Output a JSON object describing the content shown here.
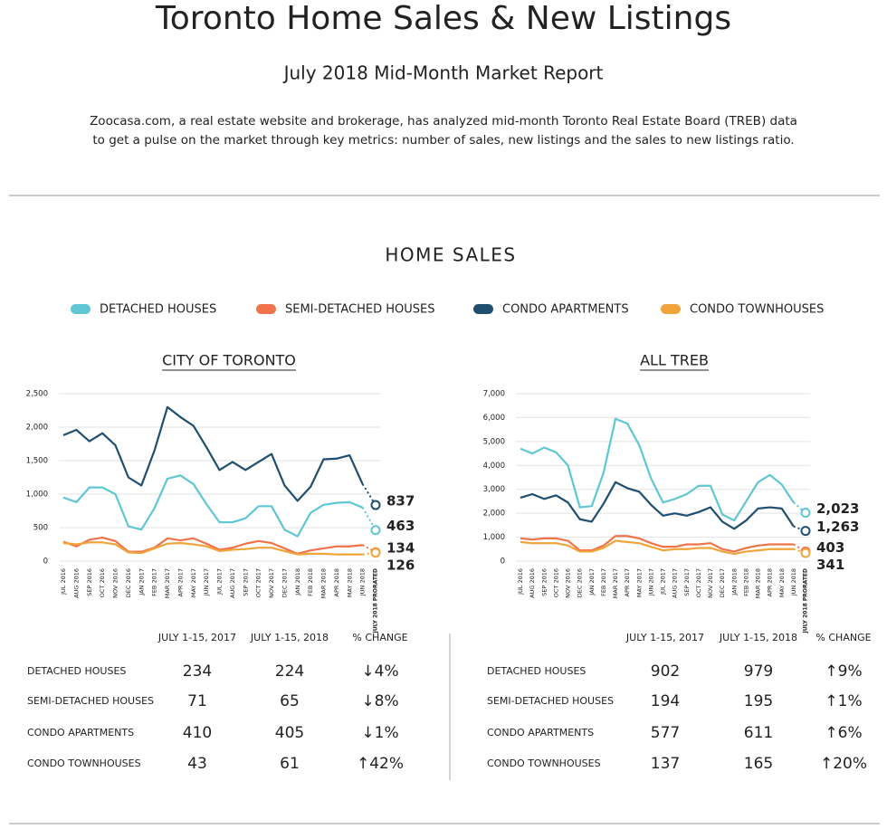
{
  "header": {
    "title": "Toronto Home Sales & New Listings",
    "subtitle": "July 2018 Mid-Month Market Report",
    "description": [
      "Zoocasa.com, a real estate website and brokerage, has analyzed mid-month Toronto Real Estate Board (TREB) data",
      "to get a pulse on the market through key metrics: number of sales, new listings and the sales to new listings ratio."
    ]
  },
  "section_title": "HOME SALES",
  "legend": [
    {
      "name": "DETACHED HOUSES",
      "color": "#5fc6d3"
    },
    {
      "name": "SEMI-DETACHED HOUSES",
      "color": "#f0734a"
    },
    {
      "name": "CONDO APARTMENTS",
      "color": "#1f4e6e"
    },
    {
      "name": "CONDO TOWNHOUSES",
      "color": "#f0a43a"
    }
  ],
  "chart_data": [
    {
      "type": "line",
      "title": "CITY OF TORONTO",
      "categories": [
        "JUL 2016",
        "AUG 2016",
        "SEP 2016",
        "OCT 2016",
        "NOV 2016",
        "DEC 2016",
        "JAN 2017",
        "FEB 2017",
        "MAR 2017",
        "APR 2017",
        "MAY 2017",
        "JUN 2017",
        "JUL 2017",
        "AUG 2017",
        "SEP 2017",
        "OCT 2017",
        "NOV 2017",
        "DEC 2017",
        "JAN 2018",
        "FEB 2018",
        "MAR 2018",
        "APR 2018",
        "MAY 2018",
        "JUN 2018",
        "JULY 2018 PRORATED"
      ],
      "ylim": [
        0,
        2500
      ],
      "yticks": [
        0,
        500,
        {
          "value": 1000,
          "label": "1,000"
        },
        {
          "value": 1500,
          "label": "1,500"
        },
        {
          "value": 2000,
          "label": "2,000"
        },
        {
          "value": 2500,
          "label": "2,500"
        }
      ],
      "grid": true,
      "series": [
        {
          "values": [
            950,
            880,
            1100,
            1100,
            1000,
            520,
            470,
            790,
            1230,
            1280,
            1150,
            850,
            580,
            580,
            640,
            820,
            820,
            470,
            370,
            720,
            840,
            870,
            880,
            800,
            463
          ],
          "value_labels": [
            null,
            null,
            null,
            null,
            null,
            null,
            null,
            null,
            null,
            null,
            null,
            null,
            null,
            null,
            null,
            null,
            null,
            null,
            null,
            null,
            null,
            null,
            null,
            null,
            "463"
          ]
        },
        {
          "values": [
            290,
            220,
            320,
            350,
            300,
            140,
            140,
            200,
            340,
            310,
            340,
            260,
            170,
            200,
            260,
            300,
            270,
            190,
            110,
            160,
            190,
            220,
            220,
            240,
            134
          ],
          "value_labels": [
            null,
            null,
            null,
            null,
            null,
            null,
            null,
            null,
            null,
            null,
            null,
            null,
            null,
            null,
            null,
            null,
            null,
            null,
            null,
            null,
            null,
            null,
            null,
            null,
            "134"
          ]
        },
        {
          "values": [
            1880,
            1960,
            1790,
            1910,
            1730,
            1250,
            1130,
            1650,
            2300,
            2150,
            2020,
            1700,
            1360,
            1480,
            1360,
            1480,
            1600,
            1130,
            900,
            1110,
            1520,
            1530,
            1580,
            1150,
            837
          ],
          "value_labels": [
            null,
            null,
            null,
            null,
            null,
            null,
            null,
            null,
            null,
            null,
            null,
            null,
            null,
            null,
            null,
            null,
            null,
            null,
            null,
            null,
            null,
            null,
            null,
            null,
            "837"
          ]
        },
        {
          "values": [
            270,
            250,
            280,
            280,
            250,
            130,
            120,
            190,
            260,
            270,
            250,
            220,
            150,
            170,
            180,
            200,
            200,
            150,
            100,
            110,
            110,
            100,
            100,
            100,
            126
          ],
          "value_labels": [
            null,
            null,
            null,
            null,
            null,
            null,
            null,
            null,
            null,
            null,
            null,
            null,
            null,
            null,
            null,
            null,
            null,
            null,
            null,
            null,
            null,
            null,
            null,
            null,
            "126"
          ]
        }
      ]
    },
    {
      "type": "line",
      "title": "ALL TREB",
      "categories": [
        "JUL 2016",
        "AUG 2016",
        "SEP 2016",
        "OCT 2016",
        "NOV 2016",
        "DEC 2016",
        "JAN 2017",
        "FEB 2017",
        "MAR 2017",
        "APR 2017",
        "MAY 2017",
        "JUN 2017",
        "JUL 2017",
        "AUG 2017",
        "SEP 2017",
        "OCT 2017",
        "NOV 2017",
        "DEC 2017",
        "JAN 2018",
        "FEB 2018",
        "MAR 2018",
        "APR 2018",
        "MAY 2018",
        "JUN 2018",
        "JULY 2018 PRORATED"
      ],
      "ylim": [
        0,
        7000
      ],
      "yticks": [
        0,
        {
          "value": 1000,
          "label": "1,000"
        },
        {
          "value": 2000,
          "label": "2,000"
        },
        {
          "value": 3000,
          "label": "3,000"
        },
        {
          "value": 4000,
          "label": "4,000"
        },
        {
          "value": 5000,
          "label": "5,000"
        },
        {
          "value": 6000,
          "label": "6,000"
        },
        {
          "value": 7000,
          "label": "7,000"
        }
      ],
      "grid": true,
      "series": [
        {
          "values": [
            4700,
            4500,
            4750,
            4550,
            4000,
            2250,
            2300,
            3700,
            5950,
            5750,
            4850,
            3450,
            2450,
            2600,
            2800,
            3150,
            3150,
            1950,
            1700,
            2500,
            3300,
            3600,
            3200,
            2450,
            2023
          ],
          "value_labels": [
            null,
            null,
            null,
            null,
            null,
            null,
            null,
            null,
            null,
            null,
            null,
            null,
            null,
            null,
            null,
            null,
            null,
            null,
            null,
            null,
            null,
            null,
            null,
            null,
            "2,023"
          ]
        },
        {
          "values": [
            950,
            900,
            950,
            950,
            850,
            450,
            450,
            650,
            1050,
            1050,
            950,
            750,
            600,
            600,
            700,
            700,
            750,
            500,
            400,
            550,
            650,
            700,
            700,
            700,
            403
          ],
          "value_labels": [
            null,
            null,
            null,
            null,
            null,
            null,
            null,
            null,
            null,
            null,
            null,
            null,
            null,
            null,
            null,
            null,
            null,
            null,
            null,
            null,
            null,
            null,
            null,
            null,
            "403"
          ]
        },
        {
          "values": [
            2650,
            2800,
            2600,
            2750,
            2450,
            1750,
            1650,
            2400,
            3300,
            3050,
            2900,
            2350,
            1900,
            2000,
            1900,
            2050,
            2250,
            1650,
            1350,
            1700,
            2200,
            2250,
            2200,
            1450,
            1263
          ],
          "value_labels": [
            null,
            null,
            null,
            null,
            null,
            null,
            null,
            null,
            null,
            null,
            null,
            null,
            null,
            null,
            null,
            null,
            null,
            null,
            null,
            null,
            null,
            null,
            null,
            null,
            "1,263"
          ]
        },
        {
          "values": [
            800,
            750,
            750,
            750,
            650,
            400,
            400,
            550,
            850,
            800,
            750,
            600,
            450,
            500,
            500,
            550,
            550,
            400,
            300,
            400,
            450,
            500,
            500,
            500,
            341
          ],
          "value_labels": [
            null,
            null,
            null,
            null,
            null,
            null,
            null,
            null,
            null,
            null,
            null,
            null,
            null,
            null,
            null,
            null,
            null,
            null,
            null,
            null,
            null,
            null,
            null,
            null,
            "341"
          ]
        }
      ]
    }
  ],
  "tables": [
    {
      "columns": [
        "JULY 1-15, 2017",
        "JULY 1-15, 2018",
        "% CHANGE"
      ],
      "rows": [
        {
          "label": "DETACHED HOUSES",
          "values": [
            234,
            224
          ],
          "change": "↓4%"
        },
        {
          "label": "SEMI-DETACHED HOUSES",
          "values": [
            71,
            65
          ],
          "change": "↓8%"
        },
        {
          "label": "CONDO APARTMENTS",
          "values": [
            410,
            405
          ],
          "change": "↓1%"
        },
        {
          "label": "CONDO TOWNHOUSES",
          "values": [
            43,
            61
          ],
          "change": "↑42%"
        }
      ]
    },
    {
      "columns": [
        "JULY 1-15, 2017",
        "JULY 1-15, 2018",
        "% CHANGE"
      ],
      "rows": [
        {
          "label": "DETACHED HOUSES",
          "values": [
            902,
            979
          ],
          "change": "↑9%"
        },
        {
          "label": "SEMI-DETACHED HOUSES",
          "values": [
            194,
            195
          ],
          "change": "↑1%"
        },
        {
          "label": "CONDO APARTMENTS",
          "values": [
            577,
            611
          ],
          "change": "↑6%"
        },
        {
          "label": "CONDO TOWNHOUSES",
          "values": [
            137,
            165
          ],
          "change": "↑20%"
        }
      ]
    }
  ]
}
